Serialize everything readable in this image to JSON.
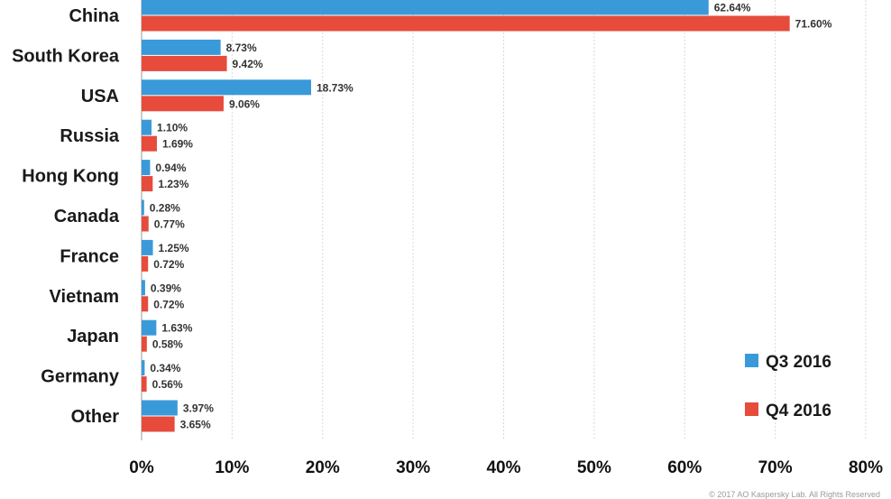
{
  "chart_data": {
    "type": "bar",
    "orientation": "horizontal",
    "categories": [
      "China",
      "South Korea",
      "USA",
      "Russia",
      "Hong Kong",
      "Canada",
      "France",
      "Vietnam",
      "Japan",
      "Germany",
      "Other"
    ],
    "series": [
      {
        "name": "Q3 2016",
        "color": "#3a9ad9",
        "values": [
          62.64,
          8.73,
          18.73,
          1.1,
          0.94,
          0.28,
          1.25,
          0.39,
          1.63,
          0.34,
          3.97
        ],
        "labels": [
          "62.64%",
          "8.73%",
          "18.73%",
          "1.10%",
          "0.94%",
          "0.28%",
          "1.25%",
          "0.39%",
          "1.63%",
          "0.34%",
          "3.97%"
        ]
      },
      {
        "name": "Q4 2016",
        "color": "#e64b3c",
        "values": [
          71.6,
          9.42,
          9.06,
          1.69,
          1.23,
          0.77,
          0.72,
          0.72,
          0.58,
          0.56,
          3.65
        ],
        "labels": [
          "71.60%",
          "9.42%",
          "9.06%",
          "1.69%",
          "1.23%",
          "0.77%",
          "0.72%",
          "0.72%",
          "0.58%",
          "0.56%",
          "3.65%"
        ]
      }
    ],
    "xlim": [
      0,
      80
    ],
    "ticks": [
      0,
      10,
      20,
      30,
      40,
      50,
      60,
      70,
      80
    ],
    "tick_labels": [
      "0%",
      "10%",
      "20%",
      "30%",
      "40%",
      "50%",
      "60%",
      "70%",
      "80%"
    ],
    "grid": true,
    "legend_position": "bottom-right"
  },
  "copyright": "© 2017 AO Kaspersky Lab. All Rights Reserved"
}
